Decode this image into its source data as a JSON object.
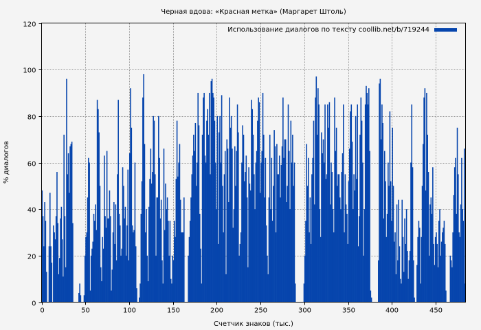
{
  "chart_data": {
    "type": "bar",
    "title": "Черная вдова: «Красная метка» (Маргарет Штоль)",
    "xlabel": "Счетчик знаков (тыс.)",
    "ylabel": "% диалогов",
    "xlim": [
      0,
      484
    ],
    "ylim": [
      0,
      120
    ],
    "xticks": [
      0,
      50,
      100,
      150,
      200,
      250,
      300,
      350,
      400,
      450
    ],
    "yticks": [
      0,
      20,
      40,
      60,
      80,
      100,
      120
    ],
    "grid": true,
    "legend_position": "top-right",
    "series": [
      {
        "name": "Использование диалогов по тексту coollib.net/b/719244",
        "color": "#0645ad",
        "x_start": 1,
        "x_step": 1,
        "values": [
          48,
          37,
          24,
          43,
          35,
          13,
          0,
          0,
          24,
          47,
          24,
          17,
          0,
          33,
          30,
          27,
          37,
          56,
          34,
          12,
          19,
          36,
          41,
          27,
          11,
          72,
          37,
          15,
          96,
          55,
          64,
          47,
          67,
          68,
          69,
          34,
          0,
          0,
          0,
          0,
          0,
          0,
          4,
          8,
          3,
          0,
          0,
          0,
          3,
          20,
          28,
          30,
          45,
          62,
          60,
          5,
          20,
          23,
          26,
          38,
          35,
          42,
          31,
          87,
          83,
          73,
          50,
          15,
          9,
          28,
          23,
          63,
          37,
          32,
          65,
          36,
          36,
          48,
          37,
          5,
          14,
          30,
          43,
          25,
          42,
          18,
          55,
          87,
          38,
          33,
          20,
          23,
          58,
          50,
          36,
          41,
          20,
          33,
          57,
          18,
          64,
          92,
          75,
          33,
          30,
          31,
          60,
          24,
          6,
          0,
          0,
          2,
          8,
          38,
          52,
          88,
          98,
          68,
          30,
          40,
          20,
          9,
          41,
          53,
          66,
          51,
          56,
          80,
          78,
          55,
          20,
          45,
          45,
          80,
          62,
          36,
          44,
          18,
          8,
          66,
          31,
          51,
          40,
          45,
          35,
          20,
          35,
          10,
          8,
          20,
          18,
          35,
          28,
          53,
          78,
          54,
          60,
          68,
          44,
          30,
          30,
          30,
          45,
          0,
          0,
          0,
          0,
          20,
          28,
          35,
          45,
          55,
          63,
          72,
          65,
          77,
          50,
          60,
          90,
          76,
          38,
          23,
          8,
          72,
          88,
          90,
          63,
          60,
          78,
          83,
          72,
          90,
          55,
          95,
          96,
          90,
          88,
          78,
          60,
          40,
          80,
          25,
          73,
          80,
          60,
          89,
          50,
          30,
          55,
          65,
          12,
          70,
          66,
          43,
          88,
          75,
          80,
          66,
          32,
          40,
          67,
          50,
          65,
          85,
          73,
          20,
          25,
          30,
          60,
          76,
          72,
          52,
          56,
          63,
          45,
          15,
          58,
          51,
          48,
          87,
          83,
          72,
          55,
          40,
          60,
          65,
          78,
          88,
          86,
          47,
          60,
          65,
          90,
          72,
          45,
          62,
          33,
          20,
          12,
          45,
          72,
          40,
          62,
          35,
          50,
          74,
          67,
          30,
          68,
          55,
          55,
          63,
          45,
          59,
          67,
          88,
          62,
          70,
          70,
          43,
          50,
          85,
          65,
          40,
          78,
          60,
          72,
          50,
          60,
          8,
          0,
          0,
          0,
          0,
          0,
          0,
          0,
          0,
          0,
          8,
          20,
          35,
          68,
          50,
          62,
          30,
          45,
          25,
          55,
          62,
          78,
          42,
          88,
          97,
          72,
          92,
          85,
          40,
          28,
          73,
          64,
          70,
          60,
          85,
          53,
          55,
          85,
          75,
          86,
          42,
          60,
          56,
          40,
          30,
          88,
          65,
          75,
          50,
          55,
          55,
          45,
          40,
          56,
          64,
          85,
          30,
          55,
          42,
          38,
          25,
          52,
          66,
          82,
          85,
          69,
          40,
          55,
          48,
          80,
          53,
          85,
          24,
          37,
          72,
          88,
          78,
          60,
          20,
          40,
          85,
          93,
          90,
          85,
          92,
          65,
          5,
          2,
          0,
          0,
          0,
          0,
          0,
          0,
          0,
          18,
          94,
          96,
          70,
          85,
          77,
          36,
          65,
          52,
          28,
          38,
          60,
          50,
          82,
          52,
          35,
          75,
          50,
          26,
          30,
          12,
          42,
          18,
          44,
          24,
          10,
          8,
          44,
          28,
          13,
          36,
          25,
          40,
          22,
          10,
          18,
          22,
          60,
          85,
          58,
          18,
          2,
          0,
          0,
          16,
          28,
          35,
          32,
          8,
          28,
          50,
          68,
          88,
          92,
          48,
          90,
          72,
          56,
          20,
          42,
          45,
          38,
          58,
          25,
          16,
          28,
          30,
          25,
          15,
          35,
          40,
          20,
          26,
          30,
          32,
          35,
          25,
          5,
          0,
          0,
          0,
          0,
          20,
          18,
          15,
          30,
          46,
          58,
          62,
          38,
          75,
          55,
          30,
          28,
          42,
          62,
          40,
          35,
          66,
          8
        ]
      }
    ]
  }
}
